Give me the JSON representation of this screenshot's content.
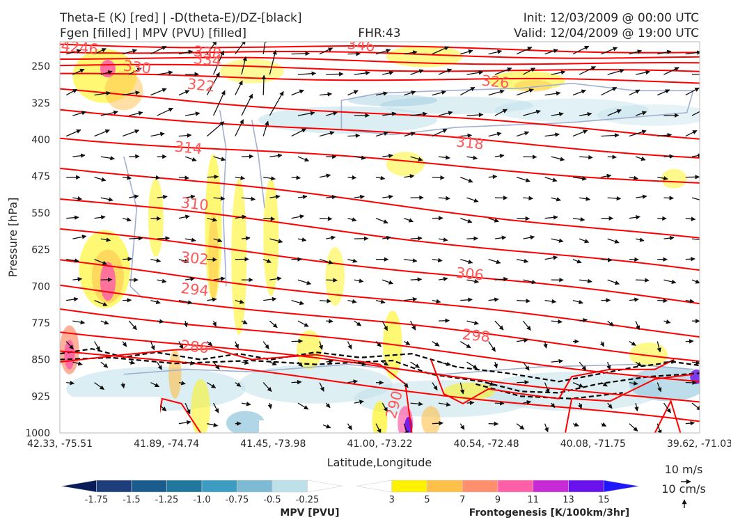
{
  "header": {
    "title_line1": "Theta-E (K) [red] | -D(theta-E)/DZ-[black]",
    "title_line2": "Fgen [filled] | MPV (PVU) [filled]",
    "fhr": "FHR:43",
    "init": "Init: 12/03/2009 @ 00:00 UTC",
    "valid": "Valid: 12/04/2009 @ 19:00 UTC"
  },
  "colors": {
    "theta_e": "#ff0000",
    "label": "#ff5a5a",
    "black_contour": "#000000",
    "mpv_outline": "#9fb0d0"
  },
  "chart_data": {
    "type": "contour",
    "xlabel": "Latitude,Longitude",
    "ylabel": "Pressure [hPa]",
    "x_ticks": [
      "42.33, -75.51",
      "41.89, -74.74",
      "41.45, -73.98",
      "41.00, -73.22",
      "40.54, -72.48",
      "40.08, -71.75",
      "39.62, -71.03"
    ],
    "y_ticks": [
      250,
      325,
      400,
      475,
      550,
      625,
      700,
      775,
      850,
      925,
      1000
    ],
    "ylim": [
      1000,
      200
    ],
    "y_scale": "reversed",
    "grid": false,
    "theta_e_contours": [
      {
        "label": "346",
        "at": [
          0.47,
          207
        ]
      },
      {
        "label": "338",
        "at": [
          0.23,
          222
        ]
      },
      {
        "label": "334",
        "at": [
          0.23,
          237
        ]
      },
      {
        "label": "330",
        "at": [
          0.12,
          252
        ]
      },
      {
        "label": "326",
        "at": [
          0.68,
          282
        ]
      },
      {
        "label": "322",
        "at": [
          0.22,
          289
        ]
      },
      {
        "label": "318",
        "at": [
          0.64,
          407
        ]
      },
      {
        "label": "314",
        "at": [
          0.2,
          417
        ]
      },
      {
        "label": "310",
        "at": [
          0.21,
          532
        ]
      },
      {
        "label": "306",
        "at": [
          0.64,
          675
        ]
      },
      {
        "label": "302",
        "at": [
          0.21,
          643
        ]
      },
      {
        "label": "298",
        "at": [
          0.65,
          801
        ]
      },
      {
        "label": "294",
        "at": [
          0.21,
          707
        ]
      },
      {
        "label": "290",
        "at": [
          0.53,
          935
        ]
      },
      {
        "label": "286",
        "at": [
          0.21,
          824
        ]
      },
      {
        "label": "4246",
        "at": [
          0.03,
          212
        ]
      }
    ],
    "mpv_colorbar": {
      "label": "MPV [PVU]",
      "ticks": [
        "-1.75",
        "-1.5",
        "-1.25",
        "-1.0",
        "-0.75",
        "-0.5",
        "-0.25"
      ],
      "colors": [
        "#081d58",
        "#1d3e7a",
        "#1a5c8e",
        "#21789e",
        "#3c9cc1",
        "#7dbbd5",
        "#bde0e9",
        "#ffffff"
      ]
    },
    "fgen_colorbar": {
      "label": "Frontogenesis [K/100km/3hr]",
      "ticks": [
        "3",
        "5",
        "7",
        "9",
        "11",
        "13",
        "15"
      ],
      "colors": [
        "#ffffff",
        "#fff200",
        "#ffc04a",
        "#ff8f6d",
        "#ff5fa6",
        "#c82ad6",
        "#6a12ee",
        "#1f18ff"
      ]
    },
    "vector_key": {
      "horizontal": "10 m/s",
      "vertical": "10 cm/s"
    }
  }
}
